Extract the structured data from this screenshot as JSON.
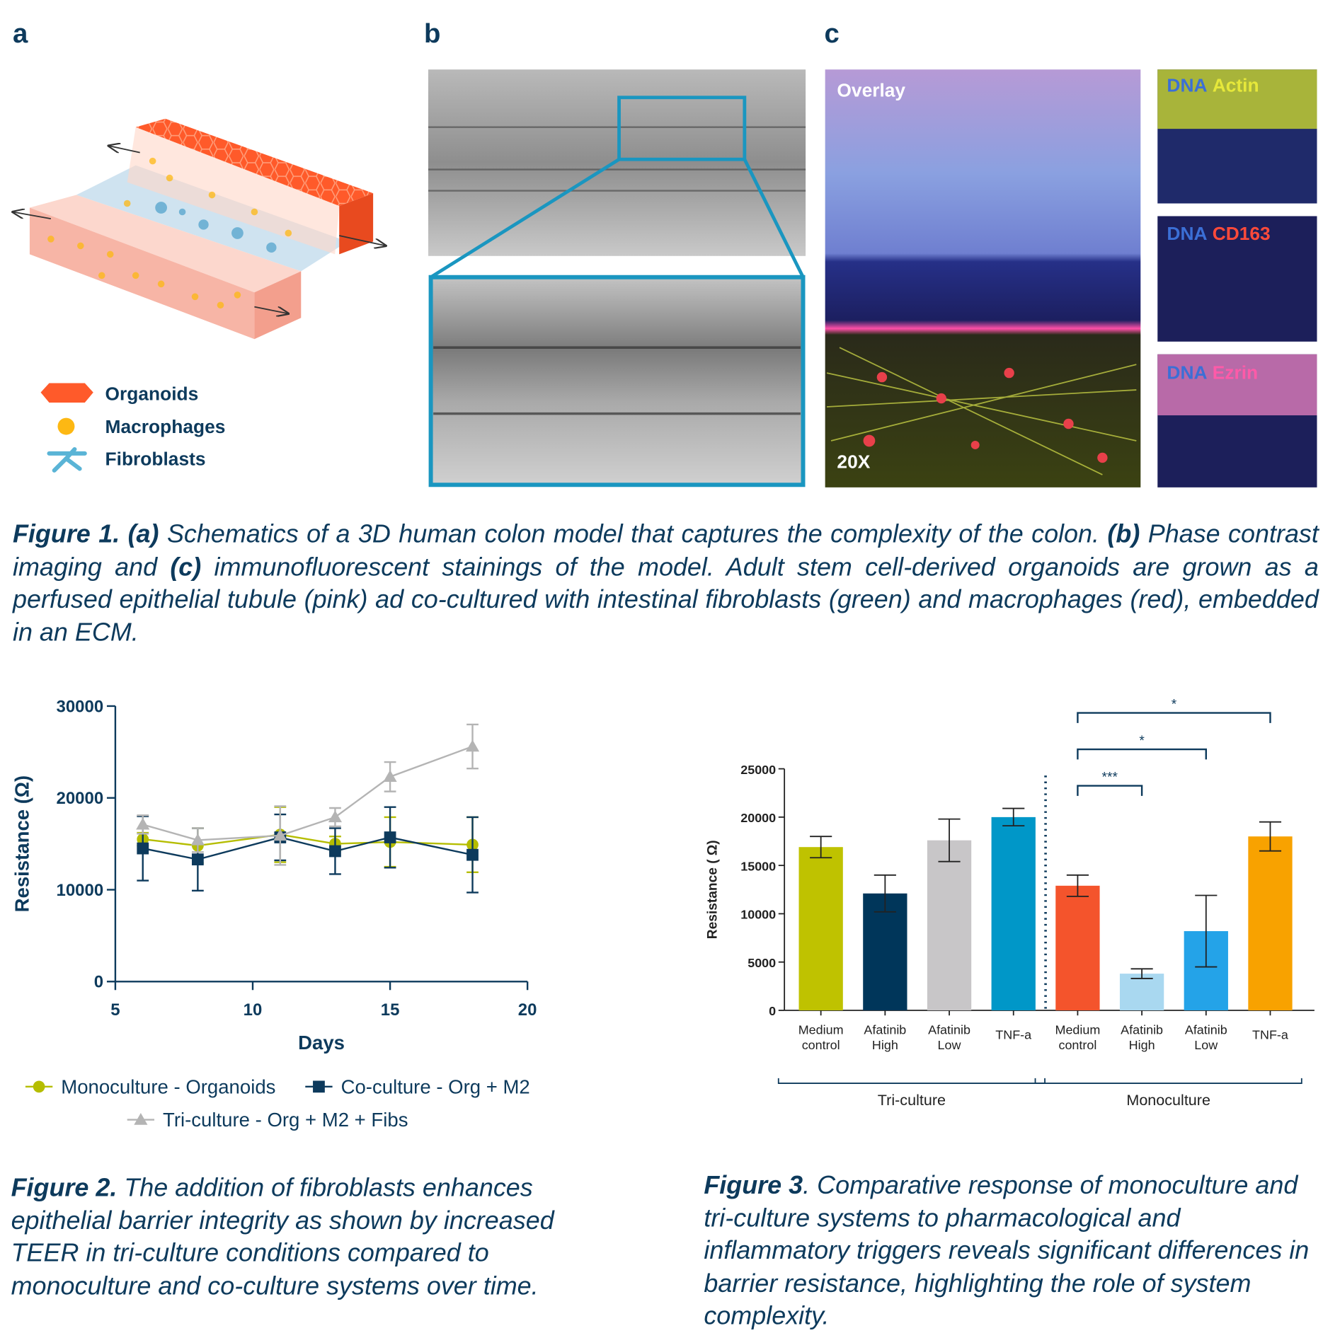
{
  "panel_labels": [
    "a",
    "b",
    "c"
  ],
  "schematic_legend": [
    "Organoids",
    "Macrophages",
    "Fibroblasts"
  ],
  "image_labels": {
    "overlay": "Overlay",
    "magnification": "20X",
    "stains": [
      [
        "DNA",
        "Actin"
      ],
      [
        "DNA",
        "CD163"
      ],
      [
        "DNA",
        "Ezrin"
      ]
    ]
  },
  "figure1_caption": [
    "Figure 1.",
    " (a)",
    " Schematics of a 3D human colon model that captures the complexity of the colon. ",
    "(b)",
    " Phase contrast imaging and ",
    "(c)",
    " immunofluorescent stainings of the model. Adult stem cell-derived organoids are grown as a perfused epithelial tubule (pink) ad co-cultured with intestinal fibroblasts (green) and macrophages (red), embedded in an ECM."
  ],
  "chart_data": [
    {
      "type": "line",
      "xlabel": "Days",
      "ylabel": "Resistance (Ω)",
      "x": [
        6,
        8,
        11,
        13,
        15,
        18
      ],
      "xlim": [
        5,
        20
      ],
      "xticks": [
        5,
        10,
        15,
        20
      ],
      "ylim": [
        0,
        30000
      ],
      "yticks": [
        0,
        10000,
        20000,
        30000
      ],
      "legend": "bottom",
      "series": [
        {
          "name": "Monoculture - Organoids",
          "color": "#b5bd00",
          "marker": "circle",
          "values": [
            15500,
            14800,
            16000,
            15000,
            15200,
            14900
          ],
          "errors": [
            700,
            1900,
            3000,
            800,
            2700,
            3000
          ]
        },
        {
          "name": "Co-culture - Org + M2",
          "color": "#0d3a5c",
          "marker": "square",
          "values": [
            14500,
            13300,
            15700,
            14200,
            15700,
            13800
          ],
          "errors": [
            3500,
            3400,
            2500,
            2500,
            3300,
            4100
          ]
        },
        {
          "name": "Tri-culture - Org + M2 + Fibs",
          "color": "#b4b4b4",
          "marker": "triangle",
          "values": [
            17100,
            15400,
            15900,
            17900,
            22300,
            25600
          ],
          "errors": [
            1000,
            1300,
            3200,
            1000,
            1600,
            2400
          ]
        }
      ]
    },
    {
      "type": "bar",
      "ylabel": "Resistance ( Ω)",
      "categories": [
        [
          "Medium",
          "control"
        ],
        [
          "Afatinib",
          "High"
        ],
        [
          "Afatinib",
          "Low"
        ],
        [
          "TNF-a"
        ],
        [
          "Medium",
          "control"
        ],
        [
          "Afatinib",
          "High"
        ],
        [
          "Afatinib",
          "Low"
        ],
        [
          "TNF-a"
        ]
      ],
      "values": [
        16900,
        12100,
        17600,
        20000,
        12900,
        3800,
        8200,
        18000
      ],
      "errors": [
        1100,
        1900,
        2200,
        900,
        1100,
        500,
        3700,
        1500
      ],
      "colors": [
        "#bfc200",
        "#00365a",
        "#c8c6c8",
        "#0097c8",
        "#f4542c",
        "#a9d8f0",
        "#24a3e8",
        "#f8a200"
      ],
      "ylim": [
        0,
        25000
      ],
      "yticks": [
        0,
        5000,
        10000,
        15000,
        20000,
        25000
      ],
      "groups": [
        {
          "name": "Tri-culture",
          "from": 0,
          "to": 3
        },
        {
          "name": "Monoculture",
          "from": 4,
          "to": 7
        }
      ],
      "significance": [
        {
          "from": 4,
          "to": 5,
          "label": "***"
        },
        {
          "from": 4,
          "to": 6,
          "label": "*"
        },
        {
          "from": 4,
          "to": 7,
          "label": "*"
        }
      ]
    }
  ],
  "figure2_caption": [
    "Figure 2.",
    " The addition of fibroblasts enhances epithelial barrier integrity as shown by increased TEER in tri-culture conditions compared to monoculture and co-culture systems over time."
  ],
  "figure3_caption": [
    "Figure 3",
    ". Comparative response of monoculture and tri-culture systems to pharmacological and inflammatory triggers reveals significant differences in barrier resistance, highlighting the role of system complexity."
  ]
}
